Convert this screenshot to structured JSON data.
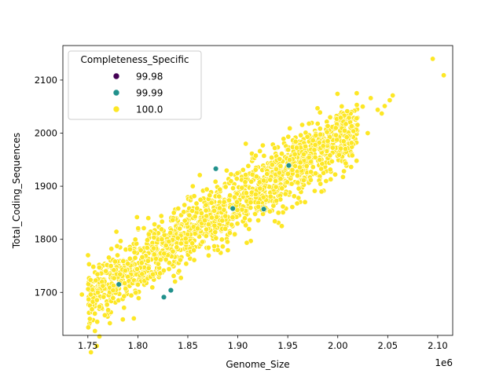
{
  "chart_data": {
    "type": "scatter",
    "title": "",
    "xlabel": "Genome_Size",
    "ylabel": "Total_Coding_Sequences",
    "x_offset_label": "1e6",
    "x_scale": 1000000,
    "xlim": [
      1.725,
      2.115
    ],
    "ylim": [
      1619,
      2165
    ],
    "x_ticks": [
      1.75,
      1.8,
      1.85,
      1.9,
      1.95,
      2.0,
      2.05,
      2.1
    ],
    "x_tick_labels": [
      "1.75",
      "1.80",
      "1.85",
      "1.90",
      "1.95",
      "2.00",
      "2.05",
      "2.10"
    ],
    "y_ticks": [
      1700,
      1800,
      1900,
      2000,
      2100
    ],
    "y_tick_labels": [
      "1700",
      "1800",
      "1900",
      "2000",
      "2100"
    ],
    "grid": false,
    "legend": {
      "title": "Completeness_Specific",
      "placement": "upper-left"
    },
    "series": [
      {
        "name": "99.98",
        "color": "#440154",
        "points": []
      },
      {
        "name": "99.99",
        "color": "#21918c",
        "points": [
          [
            1.781,
            1715
          ],
          [
            1.826,
            1691
          ],
          [
            1.833,
            1704
          ],
          [
            1.895,
            1858
          ],
          [
            1.951,
            1939
          ],
          [
            1.878,
            1933
          ],
          [
            1.926,
            1857
          ]
        ]
      },
      {
        "name": "100.0",
        "color": "#fde725",
        "points": [
          [
            1.744,
            1696
          ],
          [
            1.752,
            1650
          ],
          [
            1.757,
            1660
          ],
          [
            1.76,
            1700
          ],
          [
            1.765,
            1712
          ],
          [
            1.768,
            1740
          ],
          [
            1.772,
            1642
          ],
          [
            1.776,
            1742
          ],
          [
            1.785,
            1649
          ],
          [
            1.79,
            1754
          ],
          [
            1.796,
            1651
          ],
          [
            1.806,
            1821
          ],
          [
            1.815,
            1734
          ],
          [
            1.824,
            1800
          ],
          [
            1.836,
            1850
          ],
          [
            1.847,
            1835
          ],
          [
            1.855,
            1900
          ],
          [
            1.862,
            1921
          ],
          [
            1.869,
            1894
          ],
          [
            1.874,
            1841
          ],
          [
            1.892,
            1812
          ],
          [
            1.908,
            1980
          ],
          [
            1.925,
            1977
          ],
          [
            1.937,
            1972
          ],
          [
            1.944,
            1825
          ],
          [
            1.952,
            2009
          ],
          [
            1.966,
            1960
          ],
          [
            1.978,
            1996
          ],
          [
            1.99,
            1985
          ],
          [
            2.003,
            1971
          ],
          [
            2.008,
            1943
          ],
          [
            2.014,
            2013
          ],
          [
            2.019,
            2028
          ],
          [
            2.025,
            2050
          ],
          [
            2.03,
            2000
          ],
          [
            2.033,
            2066
          ],
          [
            2.04,
            2044
          ],
          [
            2.044,
            2037
          ],
          [
            2.047,
            2051
          ],
          [
            2.052,
            2062
          ],
          [
            2.055,
            2071
          ],
          [
            2.095,
            2140
          ],
          [
            2.106,
            2109
          ]
        ]
      }
    ],
    "cloud_band": {
      "series_index": 2,
      "count": 1500,
      "x_range": [
        1.75,
        2.02
      ],
      "start": [
        1.75,
        1688
      ],
      "end": [
        2.02,
        2012
      ],
      "spread": 30
    }
  }
}
